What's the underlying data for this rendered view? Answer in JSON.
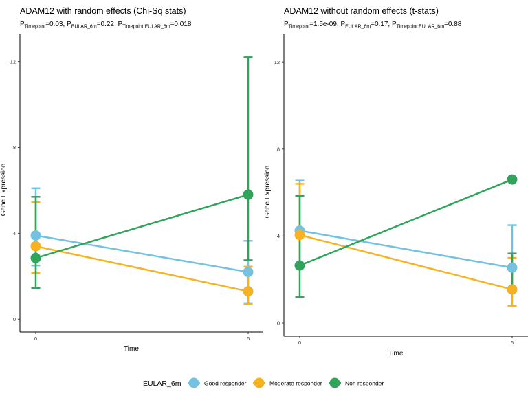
{
  "chart_data": [
    {
      "type": "line",
      "title": "ADAM12 with random effects (Chi-Sq stats)",
      "subtitle_parts": [
        {
          "t": "P",
          "sub": "Timepoint",
          "v": "=0.03, "
        },
        {
          "t": "P",
          "sub": "EULAR_6m",
          "v": "=0.22, "
        },
        {
          "t": "P",
          "sub": "Timepoint:EULAR_6m",
          "v": "=0.018"
        }
      ],
      "xlabel": "Time",
      "ylabel": "Gene Expression",
      "x": [
        0,
        6
      ],
      "x_ticks": [
        "0",
        "6"
      ],
      "ylim": [
        -0.6,
        13.3
      ],
      "y_ticks": [
        "0",
        "4",
        "8",
        "12"
      ],
      "series": [
        {
          "name": "Good responder",
          "color": "#74C2E1",
          "values": [
            3.9,
            2.2
          ],
          "err_low": [
            2.5,
            0.75
          ],
          "err_high": [
            6.1,
            3.65
          ]
        },
        {
          "name": "Moderate responder",
          "color": "#F6B221",
          "values": [
            3.4,
            1.3
          ],
          "err_low": [
            2.15,
            0.7
          ],
          "err_high": [
            5.45,
            2.45
          ]
        },
        {
          "name": "Non responder",
          "color": "#2FA45A",
          "values": [
            2.85,
            5.8
          ],
          "err_low": [
            1.45,
            2.75
          ],
          "err_high": [
            5.7,
            12.2
          ]
        }
      ]
    },
    {
      "type": "line",
      "title": "ADAM12 without random effects (t-stats)",
      "subtitle_parts": [
        {
          "t": "P",
          "sub": "Timepoint",
          "v": "=1.5e-09, "
        },
        {
          "t": "P",
          "sub": "EULAR_6m",
          "v": "=0.17, "
        },
        {
          "t": "P",
          "sub": "Timepoint:EULAR_6m",
          "v": "=0.88"
        }
      ],
      "xlabel": "Time",
      "ylabel": "Gene Expression",
      "x": [
        0,
        6
      ],
      "x_ticks": [
        "0",
        "6"
      ],
      "ylim": [
        -0.6,
        13.3
      ],
      "y_ticks": [
        "0",
        "4",
        "8",
        "12"
      ],
      "series": [
        {
          "name": "Good responder",
          "color": "#74C2E1",
          "values": [
            4.25,
            2.55
          ],
          "err_low": [
            2.6,
            1.55
          ],
          "err_high": [
            6.55,
            4.5
          ]
        },
        {
          "name": "Moderate responder",
          "color": "#F6B221",
          "values": [
            4.05,
            1.55
          ],
          "err_low": [
            2.6,
            0.8
          ],
          "err_high": [
            6.4,
            3.0
          ]
        },
        {
          "name": "Non responder",
          "color": "#2FA45A",
          "values": [
            2.65,
            6.6
          ],
          "err_low": [
            1.2,
            1.5
          ],
          "err_high": [
            5.85,
            3.2
          ]
        }
      ]
    }
  ],
  "legend": {
    "title": "EULAR_6m",
    "placement": "bottom",
    "items": [
      {
        "label": "Good responder",
        "color": "#74C2E1"
      },
      {
        "label": "Moderate responder",
        "color": "#F6B221"
      },
      {
        "label": "Non responder",
        "color": "#2FA45A"
      }
    ]
  }
}
